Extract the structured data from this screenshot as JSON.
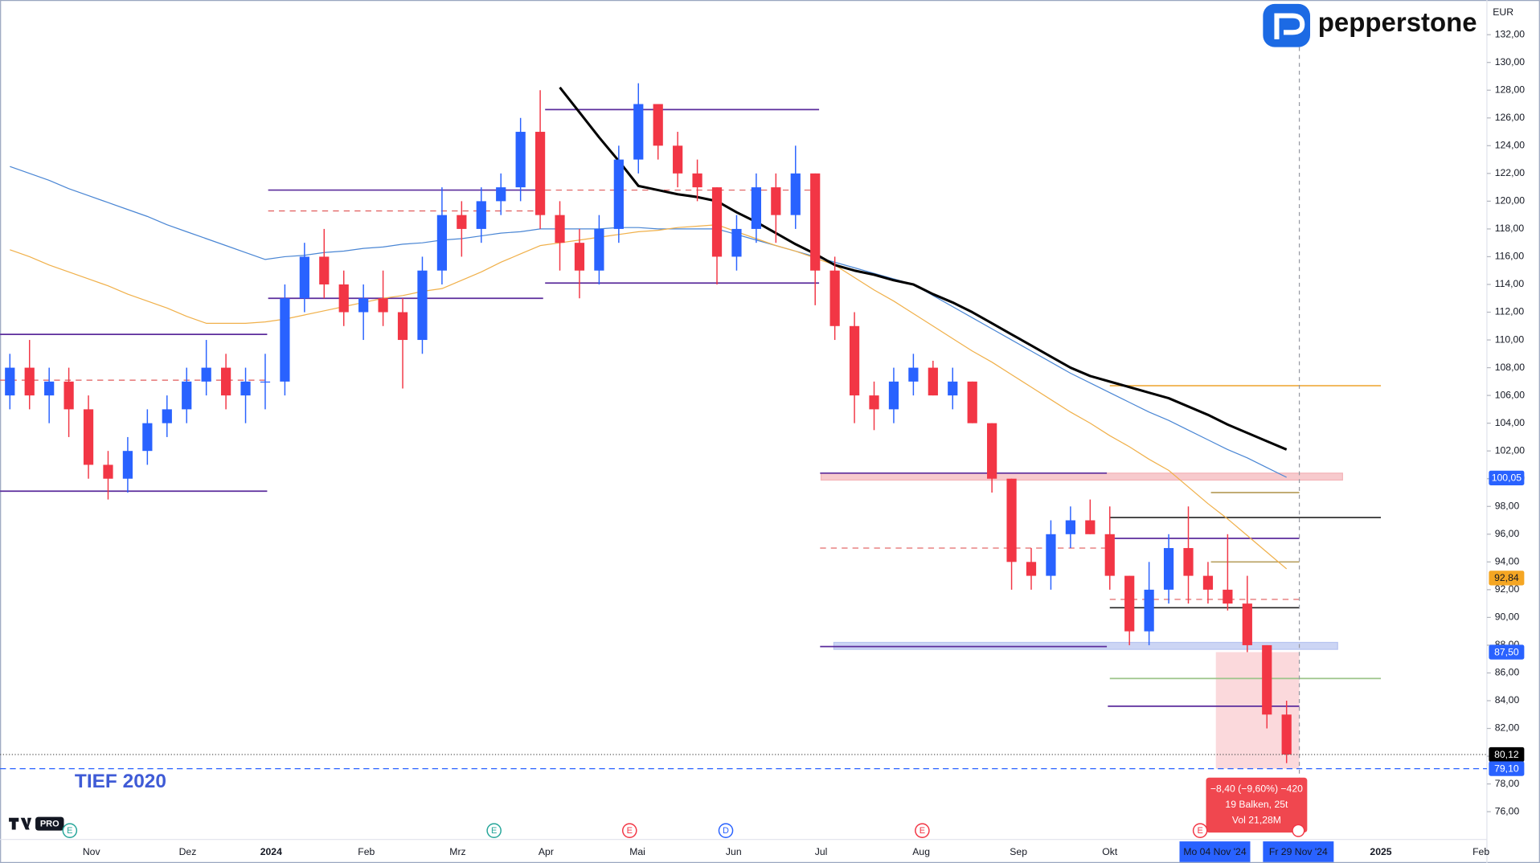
{
  "chart_data": {
    "type": "candlestick",
    "logo": "pepperstone",
    "currency": "EUR",
    "tv_badge": "PRO",
    "annotation": "TIEF 2020",
    "ylim": [
      74,
      134.5
    ],
    "yticks": [
      {
        "value": 76,
        "label": "76,00"
      },
      {
        "value": 78,
        "label": "78,00"
      },
      {
        "value": 80,
        "label": "80,00"
      },
      {
        "value": 82,
        "label": "82,00"
      },
      {
        "value": 84,
        "label": "84,00"
      },
      {
        "value": 86,
        "label": "86,00"
      },
      {
        "value": 88,
        "label": "88,00"
      },
      {
        "value": 90,
        "label": "90,00"
      },
      {
        "value": 92,
        "label": "92,00"
      },
      {
        "value": 94,
        "label": "94,00"
      },
      {
        "value": 96,
        "label": "96,00"
      },
      {
        "value": 98,
        "label": "98,00"
      },
      {
        "value": 100,
        "label": "100,00"
      },
      {
        "value": 102,
        "label": "102,00"
      },
      {
        "value": 104,
        "label": "104,00"
      },
      {
        "value": 106,
        "label": "106,00"
      },
      {
        "value": 108,
        "label": "108,00"
      },
      {
        "value": 110,
        "label": "110,00"
      },
      {
        "value": 112,
        "label": "112,00"
      },
      {
        "value": 114,
        "label": "114,00"
      },
      {
        "value": 116,
        "label": "116,00"
      },
      {
        "value": 118,
        "label": "118,00"
      },
      {
        "value": 120,
        "label": "120,00"
      },
      {
        "value": 122,
        "label": "122,00"
      },
      {
        "value": 124,
        "label": "124,00"
      },
      {
        "value": 126,
        "label": "126,00"
      },
      {
        "value": 128,
        "label": "128,00"
      },
      {
        "value": 130,
        "label": "130,00"
      },
      {
        "value": 132,
        "label": "132,00"
      }
    ],
    "x_labels": [
      "Nov",
      "Dez",
      "2024",
      "Feb",
      "Mrz",
      "Apr",
      "Mai",
      "Jun",
      "Jul",
      "Aug",
      "Sep",
      "Okt",
      "Mo 04 Nov '24",
      "Fr 29 Nov '24",
      "2025",
      "Feb"
    ],
    "up_color": "#2962ff",
    "down_color": "#f23645",
    "open": [
      106,
      108,
      106,
      107,
      105,
      101,
      100,
      102,
      104,
      105,
      107,
      108,
      106,
      107,
      107,
      113,
      116,
      114,
      112,
      113,
      112,
      110,
      115,
      119,
      118,
      120,
      121,
      125,
      119,
      117,
      115,
      118,
      123,
      127,
      124,
      122,
      121,
      116,
      118,
      121,
      119,
      122,
      115,
      111,
      106,
      105,
      107,
      108,
      106,
      107,
      104,
      100,
      94,
      93,
      96,
      97,
      96,
      93,
      89,
      92,
      95,
      93,
      92,
      91,
      88,
      83
    ],
    "high": [
      109,
      110,
      108,
      108,
      106,
      102,
      103,
      105,
      106,
      108,
      110,
      109,
      108,
      109,
      114,
      117,
      118,
      115,
      114,
      115,
      113,
      116,
      121,
      120,
      121,
      122,
      126,
      128,
      120,
      118,
      119,
      124,
      128.5,
      127,
      125,
      123,
      121,
      119,
      122,
      122,
      124,
      122,
      116,
      112,
      107,
      108,
      109,
      108.5,
      108,
      107,
      104,
      100,
      95,
      97,
      98,
      98.5,
      98,
      93,
      94,
      96,
      98,
      94,
      96,
      93,
      88,
      84
    ],
    "low": [
      105,
      105,
      104,
      103,
      100,
      98.5,
      99,
      101,
      103,
      104,
      106,
      105,
      104,
      105,
      106,
      112,
      113,
      111,
      110,
      111,
      106.5,
      109,
      114,
      116,
      117,
      119,
      120,
      118,
      115,
      113,
      114,
      117,
      122,
      123,
      121,
      120,
      114,
      115,
      117,
      117,
      118,
      112.5,
      110,
      104,
      103.5,
      104,
      106,
      106,
      105,
      104,
      99,
      92,
      92,
      92,
      95,
      96,
      92,
      88,
      88,
      91,
      91,
      91,
      90.5,
      87.5,
      82,
      79.5
    ],
    "close": [
      108,
      106,
      107,
      105,
      101,
      100,
      102,
      104,
      105,
      107,
      108,
      106,
      107,
      107,
      113,
      116,
      114,
      112,
      113,
      112,
      110,
      115,
      119,
      118,
      120,
      121,
      125,
      119,
      117,
      115,
      118,
      123,
      127,
      124,
      122,
      121,
      116,
      118,
      121,
      119,
      122,
      115,
      111,
      106,
      105,
      107,
      108,
      106,
      107,
      104,
      100,
      94,
      93,
      96,
      97,
      96,
      93,
      89,
      92,
      95,
      93,
      92,
      91,
      88,
      83,
      80.12
    ],
    "lines": [
      {
        "color": "#4a86d4",
        "width": 1,
        "values": [
          122.5,
          122,
          121.5,
          120.9,
          120.4,
          119.9,
          119.4,
          118.9,
          118.3,
          117.8,
          117.3,
          116.8,
          116.3,
          115.8,
          116,
          116.1,
          116.3,
          116.4,
          116.6,
          116.7,
          116.9,
          117,
          117.2,
          117.3,
          117.5,
          117.7,
          117.8,
          118,
          118,
          118,
          118,
          118.1,
          118.1,
          118,
          118,
          118,
          118,
          117.6,
          117.2,
          116.8,
          116.4,
          116,
          115.6,
          115.2,
          114.8,
          114.4,
          114,
          113.2,
          112.4,
          111.6,
          110.8,
          110,
          109.2,
          108.4,
          107.6,
          106.9,
          106.2,
          105.5,
          104.8,
          104.2,
          103.5,
          102.8,
          102.1,
          101.5,
          100.8,
          100.1
        ]
      },
      {
        "color": "#f0b04a",
        "width": 1,
        "values": [
          116.5,
          116,
          115.4,
          114.9,
          114.4,
          113.9,
          113.3,
          112.8,
          112.3,
          111.7,
          111.2,
          111.2,
          111.2,
          111.3,
          111.5,
          111.8,
          112.1,
          112.4,
          112.7,
          113,
          113.2,
          113.5,
          113.7,
          114.3,
          114.9,
          115.6,
          116.2,
          116.8,
          117,
          117.2,
          117.4,
          117.6,
          117.8,
          117.9,
          118.1,
          118.2,
          118.3,
          117.8,
          117.3,
          116.8,
          116.4,
          115.9,
          115.4,
          114.5,
          113.6,
          112.8,
          111.9,
          111,
          110.1,
          109.2,
          108.4,
          107.5,
          106.6,
          105.7,
          104.8,
          104,
          103.1,
          102.3,
          101.4,
          100.6,
          99.4,
          98.2,
          97.1,
          95.9,
          94.7,
          93.5
        ]
      },
      {
        "color": "#000000",
        "width": 2.5,
        "values": [
          null,
          null,
          null,
          null,
          null,
          null,
          null,
          null,
          null,
          null,
          null,
          null,
          null,
          null,
          null,
          null,
          null,
          null,
          null,
          null,
          null,
          null,
          null,
          null,
          null,
          null,
          null,
          null,
          128.2,
          126.4,
          124.6,
          122.9,
          121.1,
          120.8,
          120.5,
          120.3,
          120,
          119.2,
          118.5,
          117.7,
          116.9,
          116.2,
          115.4,
          115,
          114.7,
          114.3,
          114,
          113.3,
          112.7,
          112,
          111.2,
          110.4,
          109.6,
          108.8,
          108,
          107.4,
          107,
          106.6,
          106.2,
          105.8,
          105.2,
          104.6,
          103.9,
          103.3,
          102.7,
          102.1
        ]
      }
    ],
    "levels": [
      {
        "value": 110.4,
        "color": "#5b2c9c",
        "dashed": false
      },
      {
        "value": 99.1,
        "color": "#5b2c9c",
        "dashed": false
      },
      {
        "value": 107.1,
        "color": "#e05a5a",
        "dashed": true
      },
      {
        "value": 120.8,
        "color": "#5b2c9c",
        "dashed": false
      },
      {
        "value": 113,
        "color": "#5b2c9c",
        "dashed": false
      },
      {
        "value": 119.3,
        "color": "#e05a5a",
        "dashed": true
      },
      {
        "value": 126.6,
        "color": "#5b2c9c",
        "dashed": false
      },
      {
        "value": 114.1,
        "color": "#5b2c9c",
        "dashed": false
      },
      {
        "value": 120.8,
        "color": "#e05a5a",
        "dashed": true
      },
      {
        "value": 100.4,
        "color": "#5b2c9c",
        "dashed": false
      },
      {
        "value": 95,
        "color": "#e05a5a",
        "dashed": true
      },
      {
        "value": 87.9,
        "color": "#5b2c9c",
        "dashed": false
      },
      {
        "value": 97.2,
        "color": "#222222",
        "dashed": false
      },
      {
        "value": 95.7,
        "color": "#5b2c9c",
        "dashed": false
      },
      {
        "value": 91.3,
        "color": "#e05a5a",
        "dashed": true
      },
      {
        "value": 90.7,
        "color": "#222222",
        "dashed": false
      },
      {
        "value": 106.7,
        "color": "#f0b04a",
        "dashed": false
      },
      {
        "value": 85.6,
        "color": "#9cc48a",
        "dashed": false
      },
      {
        "value": 83.6,
        "color": "#5b2c9c",
        "dashed": false
      },
      {
        "value": 99,
        "color": "#b8a060",
        "dashed": false
      },
      {
        "value": 94,
        "color": "#b8a060",
        "dashed": false
      }
    ],
    "zones": [
      {
        "from": 99.9,
        "to": 100.4,
        "color": "#f4b4b8"
      },
      {
        "from": 87.7,
        "to": 88.2,
        "color": "#b7c3f0"
      }
    ],
    "price_labels": [
      {
        "value": 100.05,
        "label": "100,05",
        "color": "#2962ff",
        "text_color": "#ffffff"
      },
      {
        "value": 92.84,
        "label": "92,84",
        "color": "#f5a623",
        "text_color": "#131722"
      },
      {
        "value": 87.5,
        "label": "87,50",
        "color": "#2962ff",
        "text_color": "#ffffff"
      },
      {
        "value": 80.12,
        "label": "80,12",
        "color": "#000000",
        "text_color": "#ffffff",
        "line": "dotted"
      },
      {
        "value": 79.1,
        "label": "79,10",
        "color": "#2962ff",
        "text_color": "#ffffff",
        "line": "dashed"
      }
    ],
    "measure": {
      "from": 87.5,
      "to": 79.1,
      "lines": [
        "−8,40 (−9,60%) −420",
        "19 Balken, 25t",
        "Vol 21,28M"
      ]
    },
    "events": [
      {
        "label": "E",
        "color": "#26a69a"
      },
      {
        "label": "E",
        "color": "#26a69a"
      },
      {
        "label": "E",
        "color": "#f23645"
      },
      {
        "label": "D",
        "color": "#2962ff"
      },
      {
        "label": "E",
        "color": "#f23645"
      },
      {
        "label": "E",
        "color": "#f23645"
      }
    ]
  }
}
